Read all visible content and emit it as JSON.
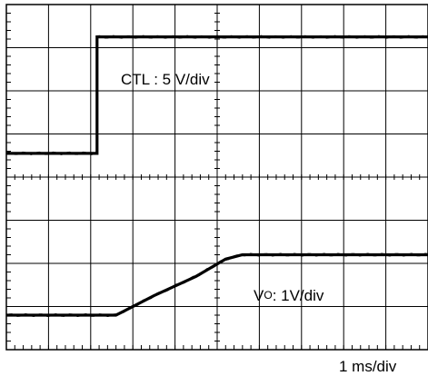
{
  "chart_data": {
    "type": "line",
    "title": "",
    "grid": true,
    "time_unit": "ms",
    "x_label": "1 ms/div",
    "x_divisions": 10,
    "x_range_ms": [
      0,
      10
    ],
    "traces": [
      {
        "name": "CTL",
        "label_prefix": "CTL : 5 V/div",
        "scale": "5 V/div",
        "vertical_divisions": 4,
        "y_range_div": [
          -2,
          2
        ],
        "unit": "div",
        "points": [
          [
            0,
            -1.45
          ],
          [
            2.15,
            -1.45
          ],
          [
            2.15,
            1.25
          ],
          [
            10,
            1.25
          ]
        ]
      },
      {
        "name": "Vo",
        "label_main": "V",
        "label_sub": "O",
        "label_suffix": ": 1V/div",
        "scale": "1V/div",
        "vertical_divisions": 4,
        "y_range_div": [
          -2,
          2
        ],
        "unit": "div",
        "points": [
          [
            0,
            -1.2
          ],
          [
            2.6,
            -1.2
          ],
          [
            2.8,
            -1.1
          ],
          [
            3.5,
            -0.75
          ],
          [
            4.5,
            -0.3
          ],
          [
            5.2,
            0.1
          ],
          [
            5.6,
            0.2
          ],
          [
            10,
            0.2
          ]
        ]
      }
    ]
  }
}
